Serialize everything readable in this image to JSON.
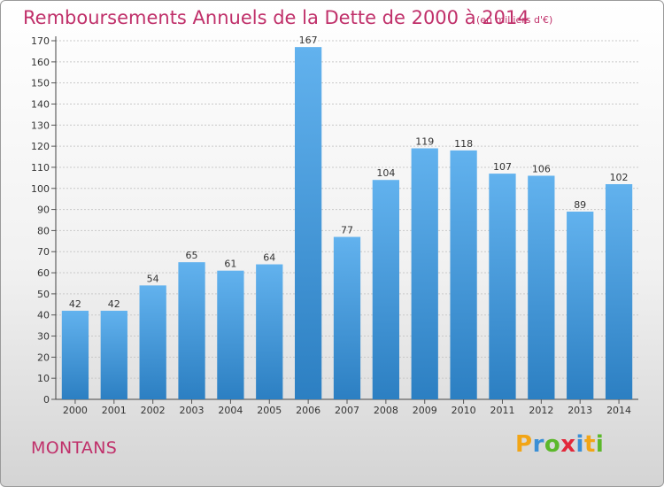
{
  "chart_data": {
    "type": "bar",
    "title": "Remboursements Annuels de la Dette de 2000 à 2014",
    "unit_note": "(en milliers d'€)",
    "categories": [
      "2000",
      "2001",
      "2002",
      "2003",
      "2004",
      "2005",
      "2006",
      "2007",
      "2008",
      "2009",
      "2010",
      "2011",
      "2012",
      "2013",
      "2014"
    ],
    "values": [
      42,
      42,
      54,
      65,
      61,
      64,
      167,
      77,
      104,
      119,
      118,
      107,
      106,
      89,
      102
    ],
    "ylim": [
      0,
      170
    ],
    "yticks": [
      0,
      10,
      20,
      30,
      40,
      50,
      60,
      70,
      80,
      90,
      100,
      110,
      120,
      130,
      140,
      150,
      160,
      170
    ],
    "grid": true,
    "bar_color": "#4a9ee0"
  },
  "commune": "MONTANS",
  "brand": {
    "name": "Proxiti",
    "letters": [
      "P",
      "r",
      "o",
      "x",
      "i",
      "t",
      "i"
    ],
    "colors": [
      "#f2a516",
      "#3a8fd6",
      "#5cb82b",
      "#e2283a",
      "#3a8fd6",
      "#f2a516",
      "#5cb82b"
    ]
  }
}
